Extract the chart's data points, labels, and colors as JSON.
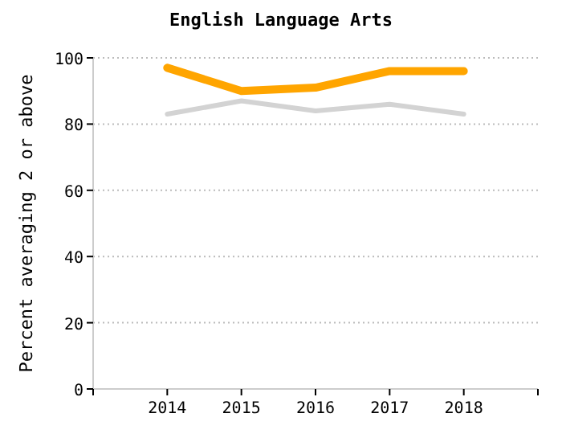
{
  "chart_data": {
    "type": "line",
    "title": "English Language Arts",
    "ylabel": "Percent averaging 2 or above",
    "x": [
      2014,
      2015,
      2016,
      2017,
      2018
    ],
    "series": [
      {
        "color": "#ffa500",
        "values": [
          97,
          90,
          91,
          96,
          96
        ]
      },
      {
        "color": "#d3d3d3",
        "values": [
          83,
          87,
          84,
          86,
          83
        ]
      }
    ],
    "xlim": [
      2013,
      2019
    ],
    "xticks": [
      {
        "value": 2013,
        "label": null
      },
      2014,
      2015,
      2016,
      2017,
      2018,
      {
        "value": 2019,
        "label": null
      }
    ],
    "ylim": [
      0,
      100
    ],
    "yticks": [
      0,
      20,
      40,
      60,
      80,
      100
    ],
    "grid": "y",
    "marker": "none",
    "line_style": "solid"
  }
}
